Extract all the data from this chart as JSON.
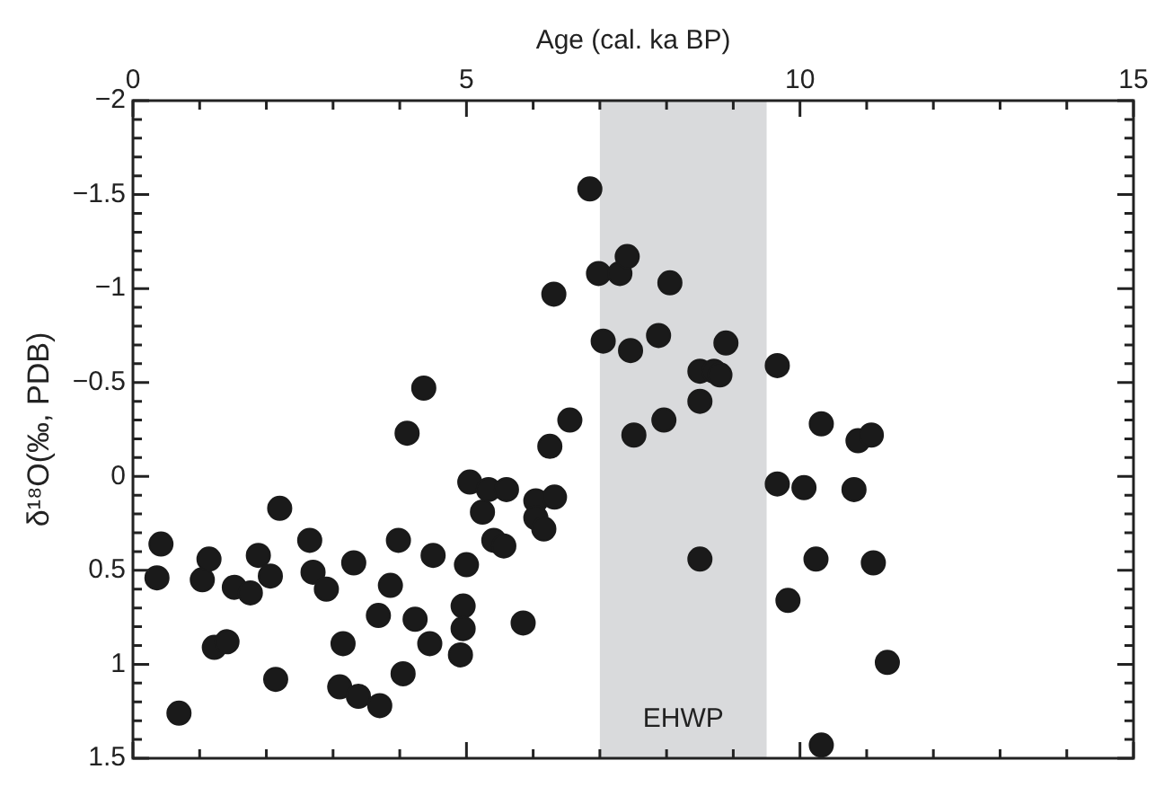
{
  "chart_data": {
    "type": "scatter",
    "xlabel": "Age (cal. ka BP)",
    "ylabel": "δ¹⁸O(‰, PDB)",
    "marker": "circle",
    "legend": false,
    "xlim": [
      0,
      15
    ],
    "xticks": [
      0,
      {
        "value": 1,
        "label": null
      },
      {
        "value": 2,
        "label": null
      },
      {
        "value": 3,
        "label": null
      },
      {
        "value": 4,
        "label": null
      },
      5,
      {
        "value": 6,
        "label": null
      },
      {
        "value": 7,
        "label": null
      },
      {
        "value": 8,
        "label": null
      },
      {
        "value": 9,
        "label": null
      },
      10,
      {
        "value": 11,
        "label": null
      },
      {
        "value": 12,
        "label": null
      },
      {
        "value": 13,
        "label": null
      },
      {
        "value": 14,
        "label": null
      },
      15
    ],
    "ylim": [
      1.5,
      -2
    ],
    "yticks": [
      {
        "value": -2,
        "label": "−2"
      },
      {
        "value": -1.9,
        "label": null
      },
      {
        "value": -1.8,
        "label": null
      },
      {
        "value": -1.7,
        "label": null
      },
      {
        "value": -1.6,
        "label": null
      },
      {
        "value": -1.5,
        "label": "−1.5"
      },
      {
        "value": -1.4,
        "label": null
      },
      {
        "value": -1.3,
        "label": null
      },
      {
        "value": -1.2,
        "label": null
      },
      {
        "value": -1.1,
        "label": null
      },
      {
        "value": -1,
        "label": "−1"
      },
      {
        "value": -0.9,
        "label": null
      },
      {
        "value": -0.8,
        "label": null
      },
      {
        "value": -0.7,
        "label": null
      },
      {
        "value": -0.6,
        "label": null
      },
      {
        "value": -0.5,
        "label": "−0.5"
      },
      {
        "value": -0.4,
        "label": null
      },
      {
        "value": -0.3,
        "label": null
      },
      {
        "value": -0.2,
        "label": null
      },
      {
        "value": -0.1,
        "label": null
      },
      0,
      {
        "value": 0.1,
        "label": null
      },
      {
        "value": 0.2,
        "label": null
      },
      {
        "value": 0.3,
        "label": null
      },
      {
        "value": 0.4,
        "label": null
      },
      0.5,
      {
        "value": 0.6,
        "label": null
      },
      {
        "value": 0.7,
        "label": null
      },
      {
        "value": 0.8,
        "label": null
      },
      {
        "value": 0.9,
        "label": null
      },
      1,
      {
        "value": 1.1,
        "label": null
      },
      {
        "value": 1.2,
        "label": null
      },
      {
        "value": 1.3,
        "label": null
      },
      {
        "value": 1.4,
        "label": null
      },
      1.5
    ],
    "tick_labels": "xy",
    "bands": [
      {
        "axis": "x",
        "from": 7,
        "to": 9.5,
        "label": "EHWP",
        "color": "#d9dadc"
      }
    ],
    "series": [
      {
        "color": "#1a1a1a",
        "x": [
          0.36,
          0.42,
          0.69,
          1.04,
          1.14,
          1.22,
          1.41,
          1.52,
          1.76,
          1.88,
          2.06,
          2.14,
          2.2,
          2.65,
          2.7,
          2.9,
          3.1,
          3.15,
          3.31,
          3.38,
          3.68,
          3.7,
          3.86,
          3.98,
          4.05,
          4.11,
          4.23,
          4.36,
          4.45,
          4.5,
          5.0,
          4.95,
          4.95,
          4.91,
          5.05,
          5.24,
          5.33,
          5.6,
          5.41,
          5.56,
          5.85,
          6.04,
          6.32,
          6.04,
          6.16,
          6.25,
          6.55,
          6.31,
          6.85,
          6.98,
          7.3,
          7.41,
          8.05,
          7.05,
          7.46,
          7.88,
          8.5,
          8.71,
          8.5,
          7.96,
          7.51,
          8.5,
          8.89,
          8.8,
          9.66,
          10.32,
          10.87,
          11.07,
          9.66,
          10.06,
          10.81,
          10.24,
          11.1,
          9.82,
          11.31,
          10.32
        ],
        "values": [
          0.54,
          0.36,
          1.26,
          0.55,
          0.44,
          0.91,
          0.88,
          0.59,
          0.62,
          0.42,
          0.53,
          1.08,
          0.17,
          0.34,
          0.51,
          0.6,
          1.12,
          0.89,
          0.46,
          1.17,
          0.74,
          1.22,
          0.58,
          0.34,
          1.05,
          -0.23,
          0.76,
          -0.47,
          0.89,
          0.42,
          0.47,
          0.69,
          0.81,
          0.95,
          0.03,
          0.19,
          0.07,
          0.07,
          0.34,
          0.37,
          0.78,
          0.13,
          0.11,
          0.22,
          0.28,
          -0.16,
          -0.3,
          -0.97,
          -1.53,
          -1.08,
          -1.08,
          -1.17,
          -1.03,
          -0.72,
          -0.67,
          -0.75,
          -0.56,
          -0.56,
          -0.4,
          -0.3,
          -0.22,
          0.44,
          -0.71,
          -0.54,
          -0.59,
          -0.28,
          -0.19,
          -0.22,
          0.04,
          0.06,
          0.07,
          0.44,
          0.46,
          0.66,
          0.99,
          1.43
        ]
      }
    ]
  }
}
